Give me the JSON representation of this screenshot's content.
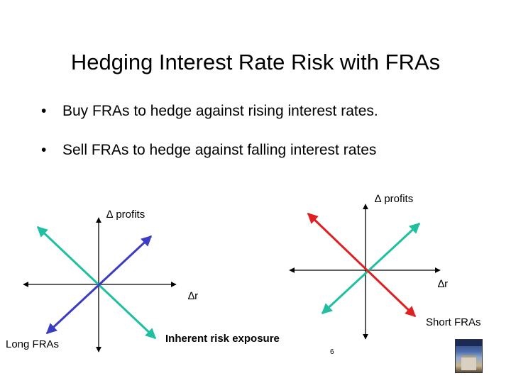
{
  "slide": {
    "title": "Hedging Interest Rate Risk with FRAs",
    "bullets": [
      "Buy FRAs to hedge against rising interest rates.",
      "Sell FRAs to hedge against falling interest rates"
    ],
    "bullet_marker": "•",
    "page_number": "6"
  },
  "diagrams": {
    "left": {
      "y_label": "∆ profits",
      "x_label": "∆r",
      "caption": "Long FRAs"
    },
    "right": {
      "y_label": "∆ profits",
      "x_label": "∆r",
      "caption": "Short FRAs"
    },
    "center_caption": "Inherent risk exposure"
  },
  "colors": {
    "teal": "#1fbf9f",
    "blue": "#3b3bc4",
    "red": "#e02020",
    "axis": "#000000"
  }
}
